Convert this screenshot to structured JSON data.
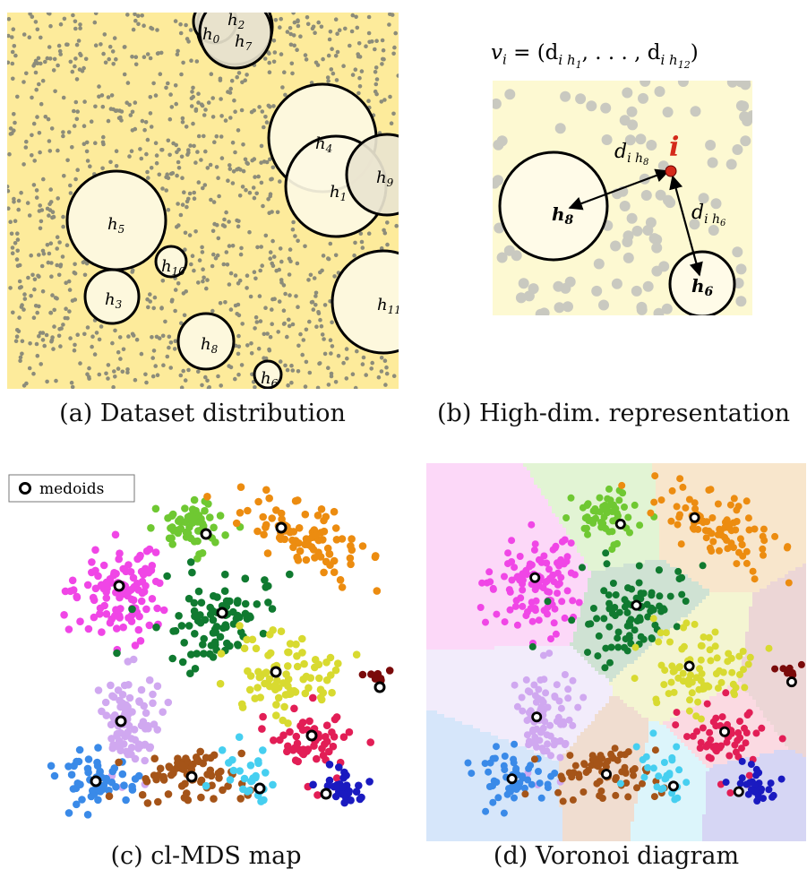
{
  "panel_a": {
    "caption": "(a) Dataset distribution",
    "colors": {
      "background": "#fdeb9b",
      "circle_fill": "#fdf9e3",
      "point": "#8c8c7a"
    },
    "holes": [
      {
        "sub": "0"
      },
      {
        "sub": "1"
      },
      {
        "sub": "2"
      },
      {
        "sub": "3"
      },
      {
        "sub": "4"
      },
      {
        "sub": "5"
      },
      {
        "sub": "6"
      },
      {
        "sub": "7"
      },
      {
        "sub": "8"
      },
      {
        "sub": "9"
      },
      {
        "sub": "10"
      },
      {
        "sub": "11"
      }
    ]
  },
  "panel_b": {
    "caption": "(b) High-dim. representation",
    "formula_v": "v",
    "formula_i": "i",
    "formula_rest": " = (d",
    "formula_ih1": "i h",
    "formula_1": "1",
    "formula_mid": ", . . . , d",
    "formula_ih12": "i h",
    "formula_12": "12",
    "formula_end": ")",
    "point_label": "i",
    "point_color": "#d42a1a",
    "circle_labels": {
      "h8": "h",
      "h8_sub": "8",
      "h6": "h",
      "h6_sub": "6"
    },
    "distance_labels": {
      "d": "d",
      "ih": "i h",
      "sub8": "8",
      "sub6": "6"
    },
    "colors": {
      "background": "#fdf9d2",
      "points": "#c9c9c0"
    }
  },
  "panel_c": {
    "caption": "(c) cl-MDS map",
    "legend_label": "medoids"
  },
  "panel_d": {
    "caption": "(d) Voronoi diagram"
  },
  "clusters": [
    {
      "name": "magenta",
      "color": "#f046e6",
      "cell": "#fcd8f8"
    },
    {
      "name": "light-green",
      "color": "#6fc832",
      "cell": "#e2f4d4"
    },
    {
      "name": "orange",
      "color": "#ec8c10",
      "cell": "#f8e6cc"
    },
    {
      "name": "dark-green",
      "color": "#107a30",
      "cell": "#cfe2d3"
    },
    {
      "name": "yellow",
      "color": "#d8da30",
      "cell": "#f4f5d2"
    },
    {
      "name": "lavender",
      "color": "#d0a8f0",
      "cell": "#f2ecfb"
    },
    {
      "name": "maroon",
      "color": "#7a0a0a",
      "cell": "#ecd6d6"
    },
    {
      "name": "crimson",
      "color": "#e21e56",
      "cell": "#fbdae2"
    },
    {
      "name": "blue",
      "color": "#3a8ae8",
      "cell": "#d6e6fa"
    },
    {
      "name": "brown",
      "color": "#a55418",
      "cell": "#f0ddd0"
    },
    {
      "name": "cyan",
      "color": "#46cff0",
      "cell": "#dcf5fb"
    },
    {
      "name": "navy",
      "color": "#1a1ac0",
      "cell": "#d6d6f4"
    }
  ]
}
